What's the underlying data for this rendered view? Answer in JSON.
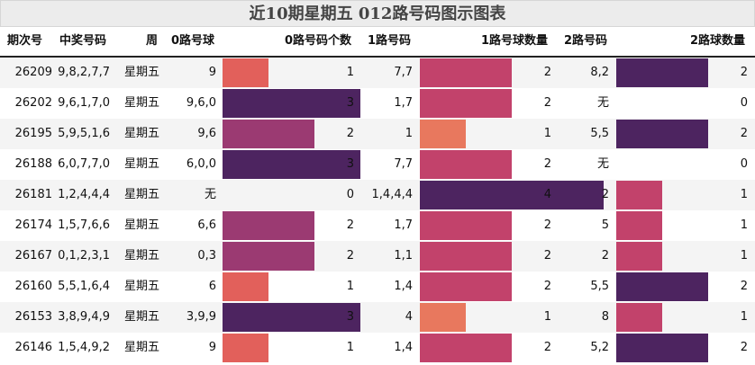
{
  "title": "近10期星期五 012路号码图示图表",
  "headers": {
    "period": "期次号",
    "numbers": "中奖号码",
    "weekday": "周",
    "r0": "0路号球",
    "r0count": "0路号码个数",
    "r1": "1路号码",
    "r1count": "1路号球数量",
    "r2": "2路号码",
    "r2count": "2路球数量"
  },
  "rows": [
    {
      "period": "26209",
      "numbers": "9,8,2,7,7",
      "weekday": "星期五",
      "r0": "9",
      "r0count": 1,
      "r1": "7,7",
      "r1count": 2,
      "r2": "8,2",
      "r2count": 2
    },
    {
      "period": "26202",
      "numbers": "9,6,1,7,0",
      "weekday": "星期五",
      "r0": "9,6,0",
      "r0count": 3,
      "r1": "1,7",
      "r1count": 2,
      "r2": "无",
      "r2count": 0
    },
    {
      "period": "26195",
      "numbers": "5,9,5,1,6",
      "weekday": "星期五",
      "r0": "9,6",
      "r0count": 2,
      "r1": "1",
      "r1count": 1,
      "r2": "5,5",
      "r2count": 2
    },
    {
      "period": "26188",
      "numbers": "6,0,7,7,0",
      "weekday": "星期五",
      "r0": "6,0,0",
      "r0count": 3,
      "r1": "7,7",
      "r1count": 2,
      "r2": "无",
      "r2count": 0
    },
    {
      "period": "26181",
      "numbers": "1,2,4,4,4",
      "weekday": "星期五",
      "r0": "无",
      "r0count": 0,
      "r1": "1,4,4,4",
      "r1count": 4,
      "r2": "2",
      "r2count": 1
    },
    {
      "period": "26174",
      "numbers": "1,5,7,6,6",
      "weekday": "星期五",
      "r0": "6,6",
      "r0count": 2,
      "r1": "1,7",
      "r1count": 2,
      "r2": "5",
      "r2count": 1
    },
    {
      "period": "26167",
      "numbers": "0,1,2,3,1",
      "weekday": "星期五",
      "r0": "0,3",
      "r0count": 2,
      "r1": "1,1",
      "r1count": 2,
      "r2": "2",
      "r2count": 1
    },
    {
      "period": "26160",
      "numbers": "5,5,1,6,4",
      "weekday": "星期五",
      "r0": "6",
      "r0count": 1,
      "r1": "1,4",
      "r1count": 2,
      "r2": "5,5",
      "r2count": 2
    },
    {
      "period": "26153",
      "numbers": "3,8,9,4,9",
      "weekday": "星期五",
      "r0": "3,9,9",
      "r0count": 3,
      "r1": "4",
      "r1count": 1,
      "r2": "8",
      "r2count": 1
    },
    {
      "period": "26146",
      "numbers": "1,5,4,9,2",
      "weekday": "星期五",
      "r0": "9",
      "r0count": 1,
      "r1": "1,4",
      "r1count": 2,
      "r2": "5,2",
      "r2count": 2
    }
  ],
  "colors": {
    "r0": {
      "1": "#e2605b",
      "2": "#9b3a72",
      "3": "#4d2460"
    },
    "r1": {
      "1": "#e8785e",
      "2": "#c2426b",
      "4": "#4d2460"
    },
    "r2": {
      "1": "#c2426b",
      "2": "#4d2460"
    }
  }
}
